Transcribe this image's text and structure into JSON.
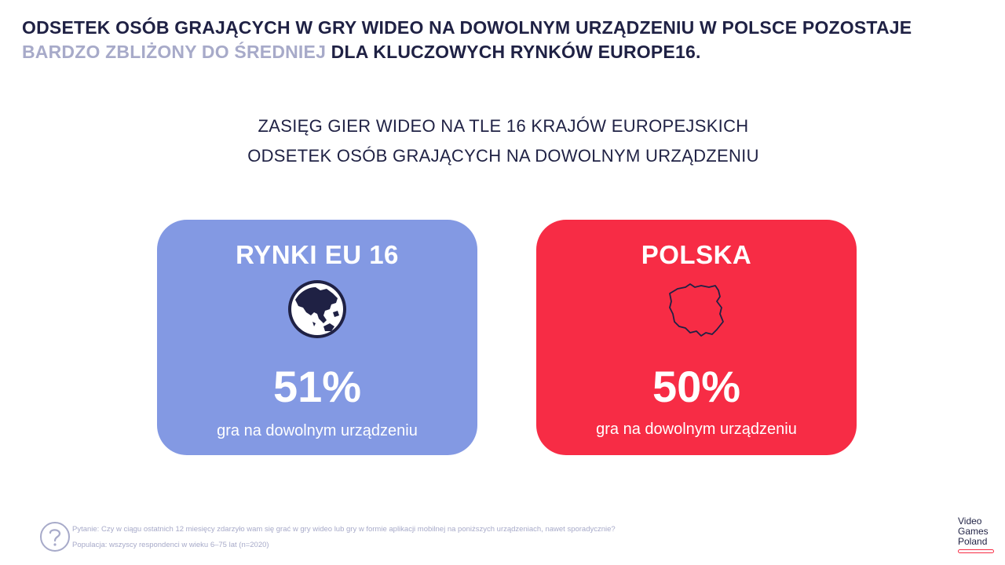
{
  "headline": {
    "part1": "ODSETEK OSÓB GRAJĄCYCH W GRY WIDEO NA DOWOLNYM URZĄDZENIU W POLSCE POZOSTAJE ",
    "accent": "BARDZO ZBLIŻONY DO ŚREDNIEJ",
    "part2": " DLA KLUCZOWYCH RYNKÓW EUROPE16."
  },
  "subtitle": {
    "line1": "ZASIĘG GIER WIDEO NA TLE 16 KRAJÓW EUROPEJSKICH",
    "line2": "ODSETEK OSÓB GRAJĄCYCH NA DOWOLNYM URZĄDZENIU"
  },
  "cards": [
    {
      "title": "RYNKI EU 16",
      "icon": "globe-icon",
      "value": "51%",
      "caption": "gra na dowolnym urządzeniu",
      "color": "#8399e3"
    },
    {
      "title": "POLSKA",
      "icon": "poland-map-icon",
      "value": "50%",
      "caption": "gra na dowolnym urządzeniu",
      "color": "#f72c45"
    }
  ],
  "footer": {
    "icon": "question-icon",
    "question": "Pytanie: Czy w ciągu ostatnich 12 miesięcy zdarzyło wam się grać w gry wideo lub gry w formie aplikacji mobilnej na poniższych urządzeniach, nawet sporadycznie?",
    "population": "Populacja: wszyscy respondenci w wieku 6–75 lat (n=2020)"
  },
  "logo": {
    "line1": "Video",
    "line2": "Games",
    "line3": "Poland",
    "accent_color": "#f72c45"
  }
}
